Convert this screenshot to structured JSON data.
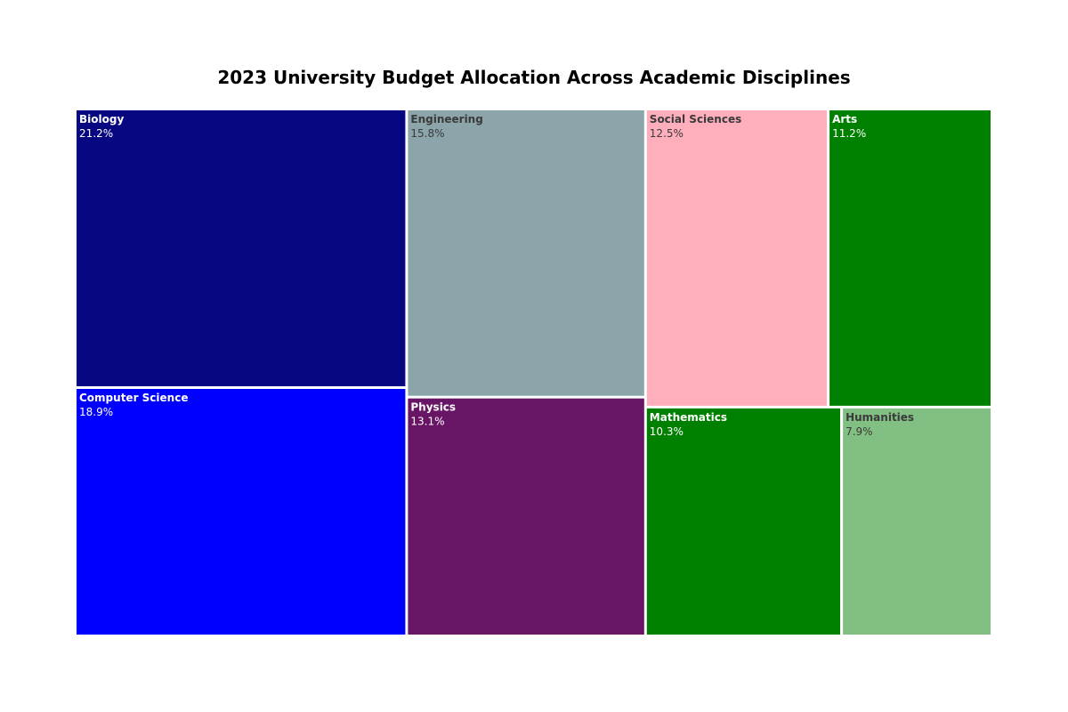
{
  "chart_data": {
    "type": "treemap",
    "title": "2023 University Budget Allocation Across Academic Disciplines",
    "unit": "%",
    "items": [
      {
        "name": "Biology",
        "label": "21.2%",
        "value": 21.2,
        "color": "#070782",
        "text_color": "#ffffff"
      },
      {
        "name": "Computer Science",
        "label": "18.9%",
        "value": 18.9,
        "color": "#0000ff",
        "text_color": "#ffffff"
      },
      {
        "name": "Engineering",
        "label": "15.8%",
        "value": 15.8,
        "color": "#8ca5aa",
        "text_color": "#3a3a3a"
      },
      {
        "name": "Physics",
        "label": "13.1%",
        "value": 13.1,
        "color": "#691566",
        "text_color": "#ffffff"
      },
      {
        "name": "Social Sciences",
        "label": "12.5%",
        "value": 12.5,
        "color": "#ffaebb",
        "text_color": "#3a3a3a"
      },
      {
        "name": "Arts",
        "label": "11.2%",
        "value": 11.2,
        "color": "#008000",
        "text_color": "#ffffff"
      },
      {
        "name": "Mathematics",
        "label": "10.3%",
        "value": 10.3,
        "color": "#008000",
        "text_color": "#ffffff"
      },
      {
        "name": "Humanities",
        "label": "7.9%",
        "value": 7.9,
        "color": "#82bf82",
        "text_color": "#3a3a3a"
      }
    ]
  }
}
